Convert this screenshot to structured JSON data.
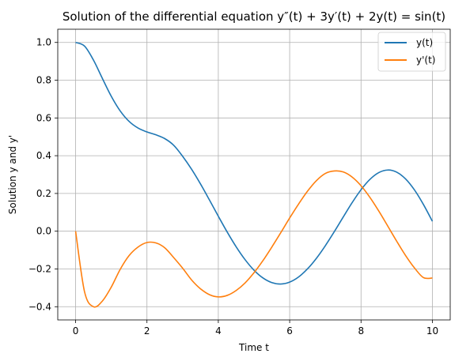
{
  "chart_data": {
    "type": "line",
    "title": "Solution of the differential equation y″(t) + 3y′(t) + 2y(t) = sin(t)",
    "xlabel": "Time t",
    "ylabel": "Solution y and y'",
    "xlim": [
      -0.5,
      10.5
    ],
    "ylim": [
      -0.47,
      1.07
    ],
    "xticks": [
      0,
      2,
      4,
      6,
      8,
      10
    ],
    "xtick_labels": [
      "0",
      "2",
      "4",
      "6",
      "8",
      "10"
    ],
    "yticks": [
      -0.4,
      -0.2,
      0.0,
      0.2,
      0.4,
      0.6,
      0.8,
      1.0
    ],
    "ytick_labels": [
      "−0.4",
      "−0.2",
      "0.0",
      "0.2",
      "0.4",
      "0.6",
      "0.8",
      "1.0"
    ],
    "grid": true,
    "legend_position": "top-right",
    "series": [
      {
        "name": "y(t)",
        "color": "#1f77b4",
        "x": [
          0,
          0.25,
          0.5,
          0.75,
          1,
          1.25,
          1.5,
          1.75,
          2,
          2.25,
          2.5,
          2.75,
          3,
          3.25,
          3.5,
          3.75,
          4,
          4.25,
          4.5,
          4.75,
          5,
          5.25,
          5.5,
          5.75,
          6,
          6.25,
          6.5,
          6.75,
          7,
          7.25,
          7.5,
          7.75,
          8,
          8.25,
          8.5,
          8.75,
          9,
          9.25,
          9.5,
          9.75,
          10
        ],
        "y": [
          1.0,
          0.9807,
          0.9067,
          0.8096,
          0.7147,
          0.6371,
          0.5815,
          0.5464,
          0.5258,
          0.5106,
          0.4904,
          0.4552,
          0.3969,
          0.3285,
          0.2505,
          0.166,
          0.0794,
          -0.0048,
          -0.0826,
          -0.1507,
          -0.2064,
          -0.2475,
          -0.2722,
          -0.2797,
          -0.2695,
          -0.2423,
          -0.1995,
          -0.1434,
          -0.0767,
          -0.0028,
          0.0747,
          0.151,
          0.2197,
          0.2745,
          0.3106,
          0.3241,
          0.3128,
          0.2767,
          0.218,
          0.1412,
          0.0527
        ]
      },
      {
        "name": "y'(t)",
        "color": "#ff7f0e",
        "x": [
          0,
          0.25,
          0.5,
          0.75,
          1,
          1.25,
          1.5,
          1.75,
          2,
          2.25,
          2.5,
          2.75,
          3,
          3.25,
          3.5,
          3.75,
          4,
          4.25,
          4.5,
          4.75,
          5,
          5.25,
          5.5,
          5.75,
          6,
          6.25,
          6.5,
          6.75,
          7,
          7.25,
          7.5,
          7.75,
          8,
          8.25,
          8.5,
          8.75,
          9,
          9.25,
          9.5,
          9.75,
          10
        ],
        "y": [
          0.0,
          -0.3204,
          -0.4,
          -0.37,
          -0.296,
          -0.202,
          -0.129,
          -0.084,
          -0.06,
          -0.062,
          -0.088,
          -0.14,
          -0.196,
          -0.258,
          -0.305,
          -0.336,
          -0.348,
          -0.34,
          -0.314,
          -0.274,
          -0.22,
          -0.156,
          -0.084,
          -0.008,
          0.07,
          0.144,
          0.212,
          0.268,
          0.306,
          0.319,
          0.314,
          0.287,
          0.241,
          0.179,
          0.106,
          0.027,
          -0.053,
          -0.129,
          -0.195,
          -0.246,
          -0.248
        ]
      }
    ]
  }
}
